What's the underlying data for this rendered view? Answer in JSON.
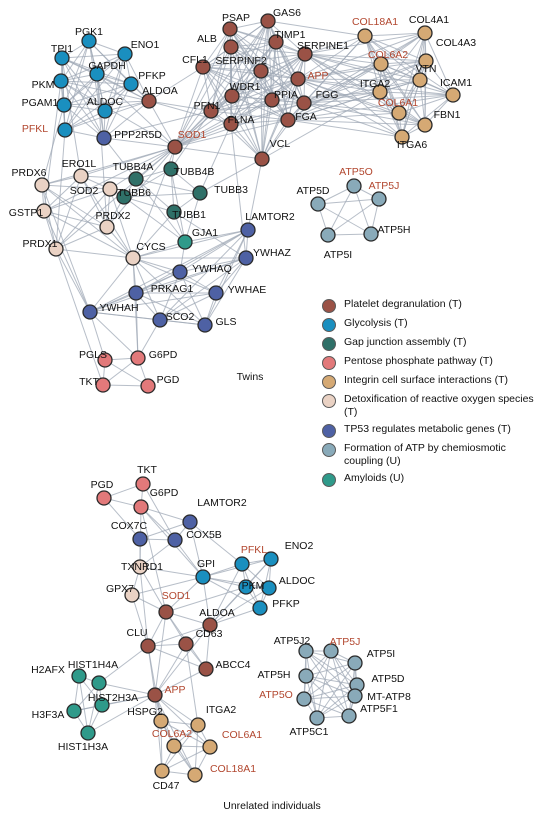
{
  "colors": {
    "platelet": "#9a5246",
    "glycolysis": "#1a8fbf",
    "gap_junction": "#2f7068",
    "pentose": "#e2797a",
    "integrin": "#d5a974",
    "detox": "#ead2c4",
    "tp53": "#4e61a4",
    "atp": "#89aab9",
    "amyloid": "#2f9a8a",
    "edge": "#9fa8b6",
    "highlight_text": "#b2472f"
  },
  "legend": [
    {
      "key": "platelet",
      "label": "Platelet degranulation (T)"
    },
    {
      "key": "glycolysis",
      "label": "Glycolysis (T)"
    },
    {
      "key": "gap_junction",
      "label": "Gap junction assembly (T)"
    },
    {
      "key": "pentose",
      "label": "Pentose phosphate pathway (T)"
    },
    {
      "key": "integrin",
      "label": "Integrin cell surface interactions (T)"
    },
    {
      "key": "detox",
      "label": "Detoxification of reactive oxygen species (T)"
    },
    {
      "key": "tp53",
      "label": "TP53 regulates metabolic genes (T)"
    },
    {
      "key": "atp",
      "label": "Formation of ATP by chemiosmotic coupling (U)"
    },
    {
      "key": "amyloid",
      "label": "Amyloids (U)"
    }
  ],
  "captions": {
    "twins": "Twins",
    "unrelated": "Unrelated individuals"
  },
  "networks": [
    {
      "id": "twins",
      "nodes": [
        {
          "id": "PGK1",
          "group": "glycolysis"
        },
        {
          "id": "TPI1",
          "group": "glycolysis"
        },
        {
          "id": "ENO1",
          "group": "glycolysis"
        },
        {
          "id": "PKM",
          "group": "glycolysis"
        },
        {
          "id": "GAPDH",
          "group": "glycolysis"
        },
        {
          "id": "PFKP",
          "group": "glycolysis"
        },
        {
          "id": "PGAM1",
          "group": "glycolysis"
        },
        {
          "id": "ALDOC",
          "group": "glycolysis"
        },
        {
          "id": "ALDOA",
          "group": "platelet"
        },
        {
          "id": "PFKL",
          "group": "glycolysis",
          "hl": true
        },
        {
          "id": "PPP2R5D",
          "group": "tp53"
        },
        {
          "id": "PSAP",
          "group": "platelet"
        },
        {
          "id": "GAS6",
          "group": "platelet"
        },
        {
          "id": "ALB",
          "group": "platelet"
        },
        {
          "id": "TIMP1",
          "group": "platelet"
        },
        {
          "id": "CFL1",
          "group": "platelet"
        },
        {
          "id": "SERPINF2",
          "group": "platelet"
        },
        {
          "id": "SERPINE1",
          "group": "platelet"
        },
        {
          "id": "APP",
          "group": "platelet",
          "hl": true
        },
        {
          "id": "WDR1",
          "group": "platelet"
        },
        {
          "id": "PFN1",
          "group": "platelet"
        },
        {
          "id": "PPIA",
          "group": "platelet"
        },
        {
          "id": "FGG",
          "group": "platelet"
        },
        {
          "id": "FGA",
          "group": "platelet"
        },
        {
          "id": "FLNA",
          "group": "platelet"
        },
        {
          "id": "SOD1",
          "group": "platelet",
          "hl": true
        },
        {
          "id": "VCL",
          "group": "platelet"
        },
        {
          "id": "COL18A1",
          "group": "integrin",
          "hl": true
        },
        {
          "id": "COL4A1",
          "group": "integrin"
        },
        {
          "id": "COL6A2",
          "group": "integrin",
          "hl": true
        },
        {
          "id": "COL4A3",
          "group": "integrin"
        },
        {
          "id": "VTN",
          "group": "integrin"
        },
        {
          "id": "ITGA2",
          "group": "integrin"
        },
        {
          "id": "ICAM1",
          "group": "integrin"
        },
        {
          "id": "COL6A1",
          "group": "integrin",
          "hl": true
        },
        {
          "id": "FBN1",
          "group": "integrin"
        },
        {
          "id": "ITGA6",
          "group": "integrin"
        },
        {
          "id": "PRDX6",
          "group": "detox"
        },
        {
          "id": "ERO1L",
          "group": "detox"
        },
        {
          "id": "SOD2",
          "group": "detox"
        },
        {
          "id": "TUBB4A",
          "group": "gap_junction"
        },
        {
          "id": "TUBB4B",
          "group": "gap_junction"
        },
        {
          "id": "TUBB6",
          "group": "gap_junction"
        },
        {
          "id": "TUBB3",
          "group": "gap_junction"
        },
        {
          "id": "TUBB1",
          "group": "gap_junction"
        },
        {
          "id": "GSTP1",
          "group": "detox"
        },
        {
          "id": "PRDX2",
          "group": "detox"
        },
        {
          "id": "GJA1",
          "group": "amyloid"
        },
        {
          "id": "LAMTOR2",
          "group": "tp53"
        },
        {
          "id": "PRDX1",
          "group": "detox"
        },
        {
          "id": "CYCS",
          "group": "detox"
        },
        {
          "id": "YWHAZ",
          "group": "tp53"
        },
        {
          "id": "YWHAQ",
          "group": "tp53"
        },
        {
          "id": "PRKAG1",
          "group": "tp53"
        },
        {
          "id": "YWHAE",
          "group": "tp53"
        },
        {
          "id": "YWHAH",
          "group": "tp53"
        },
        {
          "id": "SCO2",
          "group": "tp53"
        },
        {
          "id": "GLS",
          "group": "tp53"
        },
        {
          "id": "PGLS",
          "group": "pentose"
        },
        {
          "id": "G6PD",
          "group": "pentose"
        },
        {
          "id": "TKT",
          "group": "pentose"
        },
        {
          "id": "PGD",
          "group": "pentose"
        },
        {
          "id": "ATP5O",
          "group": "atp",
          "hl": true
        },
        {
          "id": "ATP5D",
          "group": "atp"
        },
        {
          "id": "ATP5J",
          "group": "atp",
          "hl": true
        },
        {
          "id": "ATP5H",
          "group": "atp"
        },
        {
          "id": "ATP5I",
          "group": "atp"
        }
      ]
    },
    {
      "id": "unrelated",
      "nodes": [
        {
          "id": "TKT",
          "group": "pentose"
        },
        {
          "id": "PGD",
          "group": "pentose"
        },
        {
          "id": "G6PD",
          "group": "pentose"
        },
        {
          "id": "LAMTOR2",
          "group": "tp53"
        },
        {
          "id": "COX7C",
          "group": "tp53"
        },
        {
          "id": "COX5B",
          "group": "tp53"
        },
        {
          "id": "TXNRD1",
          "group": "detox"
        },
        {
          "id": "GPI",
          "group": "glycolysis"
        },
        {
          "id": "PFKL",
          "group": "glycolysis",
          "hl": true
        },
        {
          "id": "ENO2",
          "group": "glycolysis"
        },
        {
          "id": "GPX7",
          "group": "detox"
        },
        {
          "id": "PKM",
          "group": "glycolysis"
        },
        {
          "id": "ALDOC",
          "group": "glycolysis"
        },
        {
          "id": "SOD1",
          "group": "platelet",
          "hl": true
        },
        {
          "id": "ALDOA",
          "group": "platelet"
        },
        {
          "id": "PFKP",
          "group": "glycolysis"
        },
        {
          "id": "CLU",
          "group": "platelet"
        },
        {
          "id": "CD63",
          "group": "platelet"
        },
        {
          "id": "ABCC4",
          "group": "platelet"
        },
        {
          "id": "H2AFX",
          "group": "amyloid"
        },
        {
          "id": "HIST1H4A",
          "group": "amyloid"
        },
        {
          "id": "HIST2H3A",
          "group": "amyloid"
        },
        {
          "id": "H3F3A",
          "group": "amyloid"
        },
        {
          "id": "HIST1H3A",
          "group": "amyloid"
        },
        {
          "id": "APP",
          "group": "platelet",
          "hl": true
        },
        {
          "id": "HSPG2",
          "group": "integrin"
        },
        {
          "id": "ITGA2",
          "group": "integrin"
        },
        {
          "id": "COL6A2",
          "group": "integrin",
          "hl": true
        },
        {
          "id": "COL6A1",
          "group": "integrin",
          "hl": true
        },
        {
          "id": "COL18A1",
          "group": "integrin",
          "hl": true
        },
        {
          "id": "CD47",
          "group": "integrin"
        },
        {
          "id": "ATP5J2",
          "group": "atp"
        },
        {
          "id": "ATP5J",
          "group": "atp",
          "hl": true
        },
        {
          "id": "ATP5I",
          "group": "atp"
        },
        {
          "id": "ATP5H",
          "group": "atp"
        },
        {
          "id": "ATP5D",
          "group": "atp"
        },
        {
          "id": "ATP5O",
          "group": "atp",
          "hl": true
        },
        {
          "id": "MT-ATP8",
          "group": "atp"
        },
        {
          "id": "ATP5C1",
          "group": "atp"
        },
        {
          "id": "ATP5F1",
          "group": "atp"
        }
      ]
    }
  ]
}
